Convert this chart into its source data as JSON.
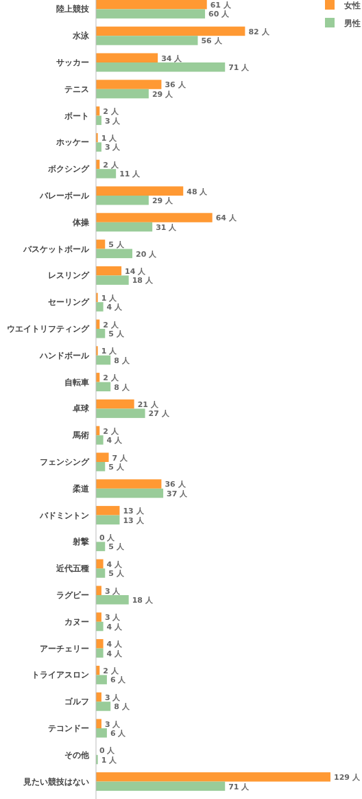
{
  "chart_data": {
    "type": "bar",
    "orientation": "horizontal",
    "legend": "top right",
    "categories": [
      "陸上競技",
      "水泳",
      "サッカー",
      "テニス",
      "ボート",
      "ホッケー",
      "ボクシング",
      "バレーボール",
      "体操",
      "バスケットボール",
      "レスリング",
      "セーリング",
      "ウエイトリフティング",
      "ハンドボール",
      "自転車",
      "卓球",
      "馬術",
      "フェンシング",
      "柔道",
      "バドミントン",
      "射撃",
      "近代五種",
      "ラグビー",
      "カヌー",
      "アーチェリー",
      "トライアスロン",
      "ゴルフ",
      "テコンドー",
      "その他",
      "見たい競技はない"
    ],
    "series": [
      {
        "name": "女性",
        "color": "#ff9933",
        "values": [
          61,
          82,
          34,
          36,
          2,
          1,
          2,
          48,
          64,
          5,
          14,
          1,
          2,
          1,
          2,
          21,
          2,
          7,
          36,
          13,
          0,
          4,
          3,
          3,
          4,
          2,
          3,
          3,
          0,
          129
        ],
        "value_labels": [
          "61 人",
          "82 人",
          "34 人",
          "36 人",
          "2 人",
          "1 人",
          "2 人",
          "48 人",
          "64 人",
          "5 人",
          "14 人",
          "1 人",
          "2 人",
          "1 人",
          "2 人",
          "21 人",
          "2 人",
          "7 人",
          "36 人",
          "13 人",
          "0 人",
          "4 人",
          "3 人",
          "3 人",
          "4 人",
          "2 人",
          "3 人",
          "3 人",
          "0 人",
          "129 人"
        ]
      },
      {
        "name": "男性",
        "color": "#99cc99",
        "values": [
          60,
          56,
          71,
          29,
          3,
          3,
          11,
          29,
          31,
          20,
          18,
          4,
          5,
          8,
          8,
          27,
          4,
          5,
          37,
          13,
          5,
          5,
          18,
          4,
          4,
          6,
          8,
          6,
          1,
          71
        ],
        "value_labels": [
          "60 人",
          "56 人",
          "71 人",
          "29 人",
          "3 人",
          "3 人",
          "11 人",
          "29 人",
          "31 人",
          "20 人",
          "18 人",
          "4 人",
          "5 人",
          "8 人",
          "8 人",
          "27 人",
          "4 人",
          "5 人",
          "37 人",
          "13 人",
          "5 人",
          "5 人",
          "18 人",
          "4 人",
          "4 人",
          "6 人",
          "8 人",
          "6 人",
          "1 人",
          "71 人"
        ]
      }
    ]
  }
}
